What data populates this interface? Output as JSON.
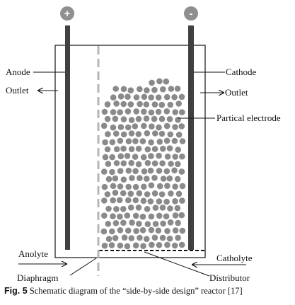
{
  "labels": {
    "anode": "Anode",
    "cathode": "Cathode",
    "outlet_left": "Outlet",
    "outlet_right": "Outlet",
    "partical_electrode": "Partical electrode",
    "anolyte": "Anolyte",
    "catholyte": "Catholyte",
    "diaphragm": "Diaphragm",
    "distributor": "Distributor",
    "plus_sign": "+",
    "minus_sign": "-"
  },
  "caption": {
    "figure_label": "Fig. 5",
    "text": "Schematic diagram of the “side-by-side design” reactor [17]"
  },
  "colors": {
    "electrode": "#404040",
    "particle": "#8a8a8a",
    "terminal": "#8f8f8f",
    "diaphragm": "#b5b5b5",
    "outline": "#111111"
  }
}
